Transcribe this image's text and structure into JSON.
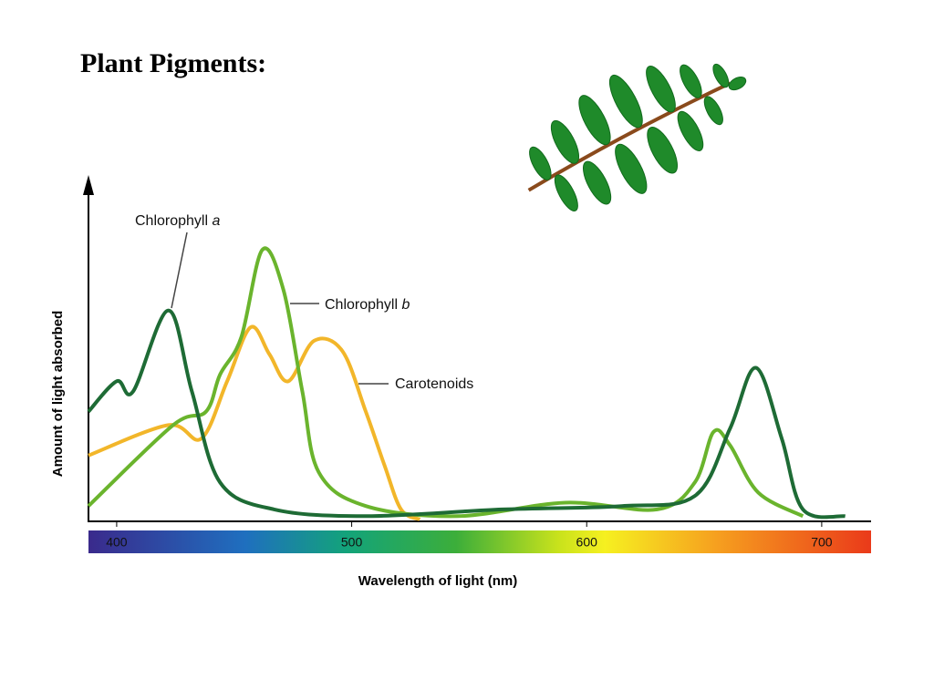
{
  "chart_data": {
    "type": "line",
    "title": "Plant Pigments:",
    "xlabel": "Wavelength of light (nm)",
    "ylabel": "Amount of light absorbed",
    "xlim": [
      388,
      721
    ],
    "ylim": [
      0,
      100
    ],
    "xticks": [
      400,
      500,
      600,
      700
    ],
    "series": [
      {
        "name": "Chlorophyll a",
        "color": "#1e6b35",
        "x": [
          388,
          400,
          407,
          422,
          432,
          444,
          467,
          506,
          564,
          615,
          646,
          661,
          672,
          683,
          692,
          710
        ],
        "values": [
          32,
          41,
          38,
          62,
          38,
          11,
          3,
          1,
          3,
          4,
          7,
          27,
          45,
          24,
          3,
          1
        ]
      },
      {
        "name": "Chlorophyll b",
        "color": "#6ab42d",
        "x": [
          388,
          424,
          438,
          444,
          453,
          462,
          471,
          479,
          486,
          506,
          545,
          591,
          630,
          646,
          654,
          661,
          673,
          692
        ],
        "values": [
          4,
          28,
          32,
          43,
          54,
          80,
          68,
          38,
          14,
          4,
          1,
          5,
          3,
          11,
          26,
          22,
          8,
          1
        ]
      },
      {
        "name": "Carotenoids",
        "color": "#f2b62a",
        "x": [
          388,
          422,
          436,
          447,
          457,
          465,
          473,
          484,
          496,
          506,
          514,
          521,
          529
        ],
        "values": [
          19,
          28,
          24,
          41,
          57,
          49,
          41,
          53,
          50,
          32,
          16,
          3,
          0
        ]
      }
    ]
  }
}
